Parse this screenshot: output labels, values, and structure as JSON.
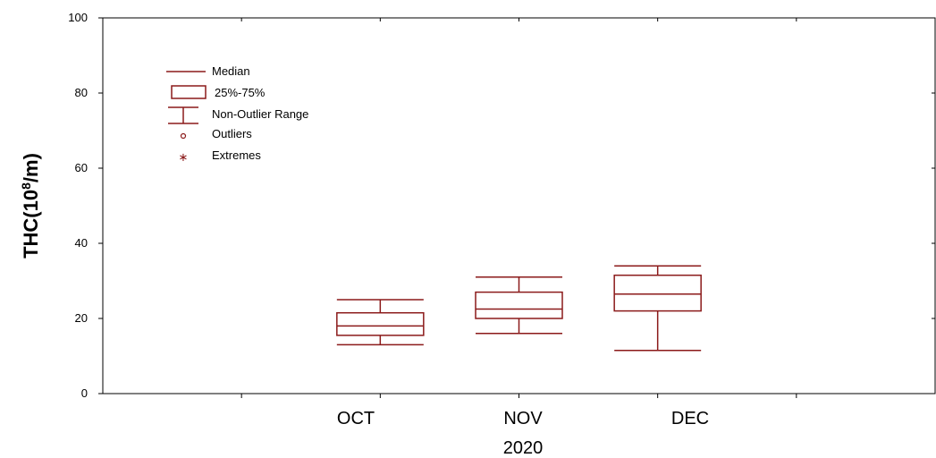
{
  "chart_data": {
    "type": "box",
    "title": "",
    "xlabel": "2020",
    "ylabel_main": "THC(10",
    "ylabel_sup": "8",
    "ylabel_unit": "/m)",
    "ylim": [
      0,
      100
    ],
    "yticks": [
      "0",
      "20",
      "40",
      "60",
      "80",
      "100"
    ],
    "categories": [
      "OCT",
      "NOV",
      "DEC"
    ],
    "series": [
      {
        "category": "OCT",
        "min": 13,
        "q1": 15.5,
        "median": 18,
        "q3": 21.5,
        "max": 25
      },
      {
        "category": "NOV",
        "min": 16,
        "q1": 20,
        "median": 22.5,
        "q3": 27,
        "max": 31
      },
      {
        "category": "DEC",
        "min": 11.5,
        "q1": 22,
        "median": 26.5,
        "q3": 31.5,
        "max": 34
      }
    ],
    "grid": false,
    "legend_position": "top-left",
    "box_color": "#8b1a1a"
  },
  "legend": {
    "median": "Median",
    "iqr": "25%-75%",
    "range": "Non-Outlier Range",
    "outliers": "Outliers",
    "extremes": "Extremes"
  }
}
